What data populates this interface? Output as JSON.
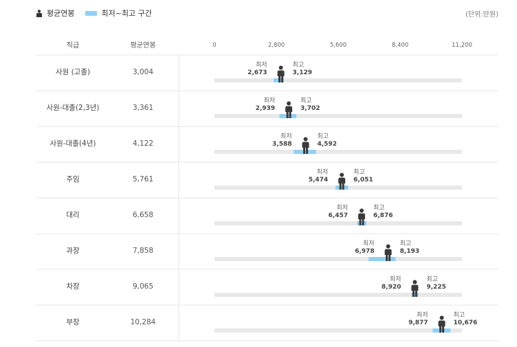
{
  "legend": {
    "avg_label": "평균연봉",
    "range_label": "최저~최고 구간",
    "unit": "(단위:만원)"
  },
  "colors": {
    "track": "#e8e8e8",
    "range": "#8fd0f5",
    "person": "#3a3a3a",
    "line": "#e4e4e4"
  },
  "chart_data": {
    "type": "range-dot",
    "title": "",
    "columns": {
      "category": "직급",
      "average": "평균연봉"
    },
    "xlim": [
      0,
      11200
    ],
    "xticks": [
      0,
      2800,
      5600,
      8400,
      11200
    ],
    "xtick_labels": [
      "0",
      "2,800",
      "5,600",
      "8,400",
      "11,200"
    ],
    "min_label": "최저",
    "max_label": "최고",
    "rows": [
      {
        "category": "사원 (고졸)",
        "avg": 3004,
        "avg_label": "3,004",
        "min": 2673,
        "min_label": "2,673",
        "max": 3129,
        "max_label": "3,129"
      },
      {
        "category": "사원-대졸(2,3년)",
        "avg": 3361,
        "avg_label": "3,361",
        "min": 2939,
        "min_label": "2,939",
        "max": 3702,
        "max_label": "3,702"
      },
      {
        "category": "사원-대졸(4년)",
        "avg": 4122,
        "avg_label": "4,122",
        "min": 3588,
        "min_label": "3,588",
        "max": 4592,
        "max_label": "4,592"
      },
      {
        "category": "주임",
        "avg": 5761,
        "avg_label": "5,761",
        "min": 5474,
        "min_label": "5,474",
        "max": 6051,
        "max_label": "6,051"
      },
      {
        "category": "대리",
        "avg": 6658,
        "avg_label": "6,658",
        "min": 6457,
        "min_label": "6,457",
        "max": 6876,
        "max_label": "6,876"
      },
      {
        "category": "과장",
        "avg": 7858,
        "avg_label": "7,858",
        "min": 6978,
        "min_label": "6,978",
        "max": 8193,
        "max_label": "8,193"
      },
      {
        "category": "차장",
        "avg": 9065,
        "avg_label": "9,065",
        "min": 8920,
        "min_label": "8,920",
        "max": 9225,
        "max_label": "9,225"
      },
      {
        "category": "부장",
        "avg": 10284,
        "avg_label": "10,284",
        "min": 9877,
        "min_label": "9,877",
        "max": 10676,
        "max_label": "10,676"
      }
    ]
  }
}
